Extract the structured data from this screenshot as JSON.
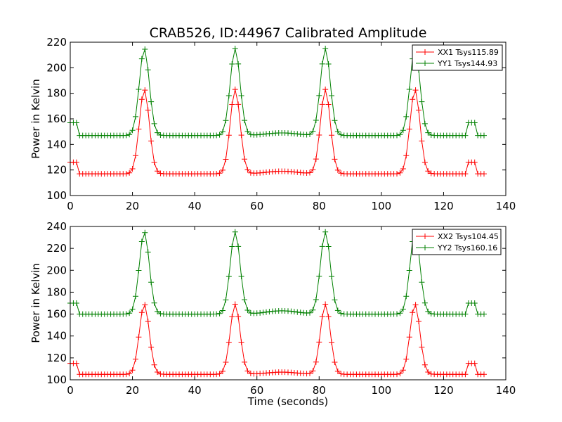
{
  "chart_data": {
    "title": "CRAB526, ID:44967 Calibrated Amplitude",
    "charts": [
      {
        "type": "line",
        "xlabel": "",
        "ylabel": "Power in Kelvin",
        "xlim": [
          0,
          140
        ],
        "ylim": [
          100,
          220
        ],
        "xticks": [
          0,
          20,
          40,
          60,
          80,
          100,
          120,
          140
        ],
        "yticks": [
          100,
          120,
          140,
          160,
          180,
          200,
          220
        ],
        "legend_position": "top-right",
        "series": [
          {
            "name": "XX1 Tsys115.89",
            "color": "#ff0000",
            "marker": "+",
            "baseline": 117,
            "peak": 183,
            "edge": 126,
            "dip": 119
          },
          {
            "name": "YY1 Tsys144.93",
            "color": "#008000",
            "marker": "+",
            "baseline": 147,
            "peak": 215,
            "edge": 157,
            "dip": 149
          }
        ]
      },
      {
        "type": "line",
        "xlabel": "Time (seconds)",
        "ylabel": "Power in Kelvin",
        "xlim": [
          0,
          140
        ],
        "ylim": [
          100,
          240
        ],
        "xticks": [
          0,
          20,
          40,
          60,
          80,
          100,
          120,
          140
        ],
        "yticks": [
          100,
          120,
          140,
          160,
          180,
          200,
          220,
          240
        ],
        "legend_position": "top-right",
        "series": [
          {
            "name": "XX2 Tsys104.45",
            "color": "#ff0000",
            "marker": "+",
            "baseline": 105,
            "peak": 169,
            "edge": 115,
            "dip": 107
          },
          {
            "name": "YY2 Tsys160.16",
            "color": "#008000",
            "marker": "+",
            "baseline": 160,
            "peak": 235,
            "edge": 170,
            "dip": 163
          }
        ]
      }
    ],
    "x_samples": {
      "start": 0,
      "end": 133,
      "step": 1
    },
    "peak_centers": [
      23.8,
      53,
      82,
      110.8
    ],
    "peak_sigma": 1.6,
    "start_edge_end": 2.5,
    "end_edge_range": [
      127.5,
      130.5
    ],
    "dip_center": 68,
    "dip_sigma": 5
  }
}
